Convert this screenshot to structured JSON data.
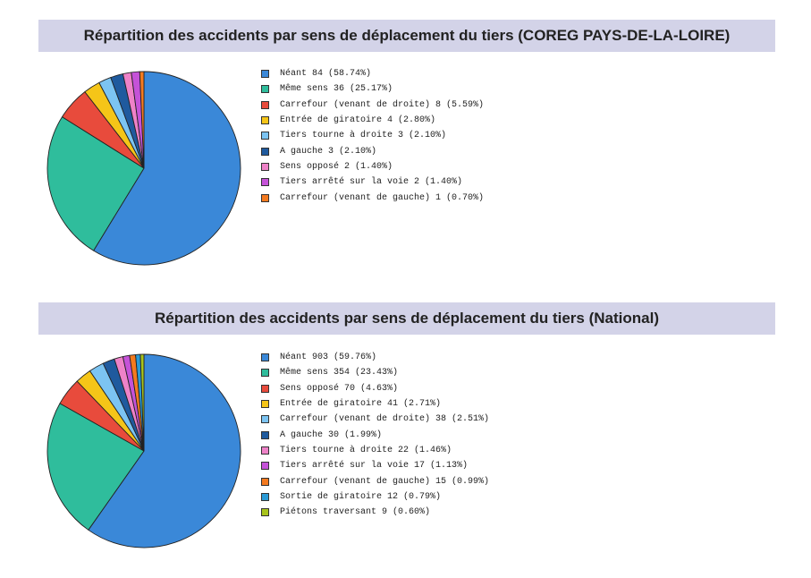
{
  "chart_data": [
    {
      "type": "pie",
      "title": "Répartition des accidents par sens de déplacement du tiers (COREG PAYS-DE-LA-LOIRE)",
      "slices": [
        {
          "label": "Néant 84 (58.74%)",
          "value": 84,
          "color": "#3a88d8"
        },
        {
          "label": "Même sens 36 (25.17%)",
          "value": 36,
          "color": "#2fbd9c"
        },
        {
          "label": "Carrefour (venant de droite) 8 (5.59%)",
          "value": 8,
          "color": "#e84b3c"
        },
        {
          "label": "Entrée de giratoire 4 (2.80%)",
          "value": 4,
          "color": "#f5c518"
        },
        {
          "label": "Tiers tourne à droite 3 (2.10%)",
          "value": 3,
          "color": "#7cc4f2"
        },
        {
          "label": "A gauche 3 (2.10%)",
          "value": 3,
          "color": "#1f5a9e"
        },
        {
          "label": "Sens opposé 2 (1.40%)",
          "value": 2,
          "color": "#ee82c8"
        },
        {
          "label": "Tiers arrêté sur la voie 2 (1.40%)",
          "value": 2,
          "color": "#c552d8"
        },
        {
          "label": "Carrefour (venant de gauche) 1 (0.70%)",
          "value": 1,
          "color": "#f47a1f"
        }
      ]
    },
    {
      "type": "pie",
      "title": "Répartition des accidents par sens de déplacement du tiers (National)",
      "slices": [
        {
          "label": "Néant 903 (59.76%)",
          "value": 903,
          "color": "#3a88d8"
        },
        {
          "label": "Même sens 354 (23.43%)",
          "value": 354,
          "color": "#2fbd9c"
        },
        {
          "label": "Sens opposé 70 (4.63%)",
          "value": 70,
          "color": "#e84b3c"
        },
        {
          "label": "Entrée de giratoire 41 (2.71%)",
          "value": 41,
          "color": "#f5c518"
        },
        {
          "label": "Carrefour (venant de droite) 38 (2.51%)",
          "value": 38,
          "color": "#7cc4f2"
        },
        {
          "label": "A gauche 30 (1.99%)",
          "value": 30,
          "color": "#1f5a9e"
        },
        {
          "label": "Tiers tourne à droite 22 (1.46%)",
          "value": 22,
          "color": "#ee82c8"
        },
        {
          "label": "Tiers arrêté sur la voie 17 (1.13%)",
          "value": 17,
          "color": "#c552d8"
        },
        {
          "label": "Carrefour (venant de gauche) 15 (0.99%)",
          "value": 15,
          "color": "#f47a1f"
        },
        {
          "label": "Sortie de giratoire 12 (0.79%)",
          "value": 12,
          "color": "#2a9ad6"
        },
        {
          "label": "Piétons traversant 9 (0.60%)",
          "value": 9,
          "color": "#a8c41c"
        }
      ]
    }
  ]
}
